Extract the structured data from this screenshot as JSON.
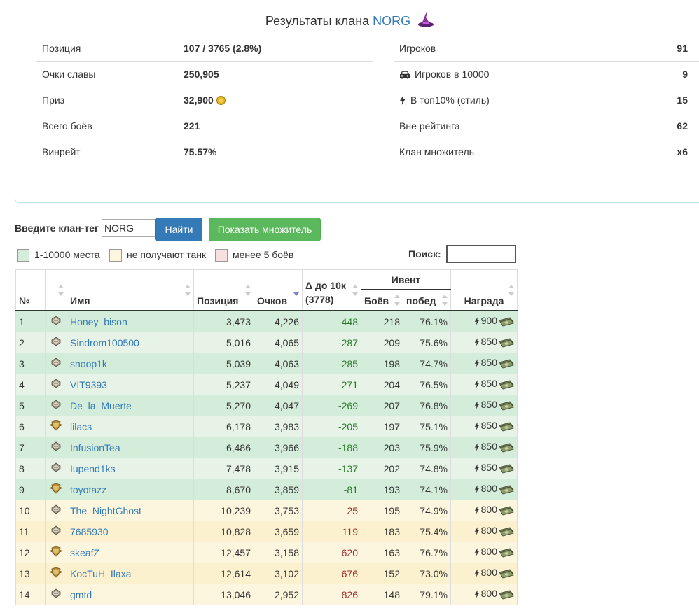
{
  "summary": {
    "title_prefix": "Результаты клана",
    "clan_tag": "NORG",
    "left": [
      {
        "label": "Позиция",
        "value": "107 / 3765 (2.8%)"
      },
      {
        "label": "Очки славы",
        "value": "250,905"
      },
      {
        "label": "Приз",
        "value": "32,900"
      },
      {
        "label": "Всего боёв",
        "value": "221"
      },
      {
        "label": "Винрейт",
        "value": "75.57%"
      }
    ],
    "right": [
      {
        "label": "Игроков",
        "value": "91",
        "icon": ""
      },
      {
        "label": "Игроков в 10000",
        "value": "9",
        "icon": "car-icon"
      },
      {
        "label": "В топ10% (стиль)",
        "value": "15",
        "icon": "bolt-icon"
      },
      {
        "label": "Вне рейтинга",
        "value": "62",
        "icon": ""
      },
      {
        "label": "Клан множитель",
        "value": "x6",
        "icon": ""
      }
    ]
  },
  "search": {
    "tag_label": "Введите клан-тег",
    "tag_value": "NORG",
    "find_label": "Найти",
    "multiplier_label": "Показать множитель",
    "filter_label": "Поиск:"
  },
  "legend": [
    {
      "label": "1-10000 места",
      "color": "#d4edda"
    },
    {
      "label": "не получают танк",
      "color": "#fdf6de"
    },
    {
      "label": "менее 5 боёв",
      "color": "#f8dfe2"
    }
  ],
  "table": {
    "headers": {
      "num": "№",
      "name": "Имя",
      "position": "Позиция",
      "points": "Очков",
      "delta_line1": "Δ до 10к",
      "delta_line2": "(3778)",
      "event": "Ивент",
      "battles": "Боёв",
      "wins": "побед",
      "reward": "Награда"
    },
    "rows": [
      {
        "n": "1",
        "rank": "silver",
        "name": "Honey_bison",
        "position": "3,473",
        "points": "4,226",
        "delta": "-448",
        "battles": "218",
        "wins": "76.1%",
        "reward": "900",
        "style": "g"
      },
      {
        "n": "2",
        "rank": "silver",
        "name": "Sindrom100500",
        "position": "5,016",
        "points": "4,065",
        "delta": "-287",
        "battles": "209",
        "wins": "75.6%",
        "reward": "850",
        "style": "g2"
      },
      {
        "n": "3",
        "rank": "silver",
        "name": "snoop1k_",
        "position": "5,039",
        "points": "4,063",
        "delta": "-285",
        "battles": "198",
        "wins": "74.7%",
        "reward": "850",
        "style": "g"
      },
      {
        "n": "4",
        "rank": "silver",
        "name": "VIT9393",
        "position": "5,237",
        "points": "4,049",
        "delta": "-271",
        "battles": "204",
        "wins": "76.5%",
        "reward": "850",
        "style": "g2"
      },
      {
        "n": "5",
        "rank": "silver",
        "name": "De_la_Muerte_",
        "position": "5,270",
        "points": "4,047",
        "delta": "-269",
        "battles": "207",
        "wins": "76.8%",
        "reward": "850",
        "style": "g"
      },
      {
        "n": "6",
        "rank": "gold",
        "name": "lilacs",
        "position": "6,178",
        "points": "3,983",
        "delta": "-205",
        "battles": "197",
        "wins": "75.1%",
        "reward": "850",
        "style": "g2"
      },
      {
        "n": "7",
        "rank": "silver",
        "name": "InfusionTea",
        "position": "6,486",
        "points": "3,966",
        "delta": "-188",
        "battles": "203",
        "wins": "75.9%",
        "reward": "850",
        "style": "g"
      },
      {
        "n": "8",
        "rank": "silver",
        "name": "Iupend1ks",
        "position": "7,478",
        "points": "3,915",
        "delta": "-137",
        "battles": "202",
        "wins": "74.8%",
        "reward": "850",
        "style": "g2"
      },
      {
        "n": "9",
        "rank": "gold",
        "name": "toyotazz",
        "position": "8,670",
        "points": "3,859",
        "delta": "-81",
        "battles": "193",
        "wins": "74.1%",
        "reward": "800",
        "style": "g"
      },
      {
        "n": "10",
        "rank": "silver",
        "name": "The_NightGhost",
        "position": "10,239",
        "points": "3,753",
        "delta": "25",
        "battles": "195",
        "wins": "74.9%",
        "reward": "800",
        "style": "y"
      },
      {
        "n": "11",
        "rank": "silver",
        "name": "7685930",
        "position": "10,828",
        "points": "3,659",
        "delta": "119",
        "battles": "183",
        "wins": "75.4%",
        "reward": "800",
        "style": "y2"
      },
      {
        "n": "12",
        "rank": "gold",
        "name": "skeafZ",
        "position": "12,457",
        "points": "3,158",
        "delta": "620",
        "battles": "163",
        "wins": "76.7%",
        "reward": "800",
        "style": "y"
      },
      {
        "n": "13",
        "rank": "gold",
        "name": "KocTuH_Ilaxa",
        "position": "12,614",
        "points": "3,102",
        "delta": "676",
        "battles": "152",
        "wins": "73.0%",
        "reward": "800",
        "style": "y2"
      },
      {
        "n": "14",
        "rank": "silver",
        "name": "gmtd",
        "position": "13,046",
        "points": "2,952",
        "delta": "826",
        "battles": "148",
        "wins": "79.1%",
        "reward": "800",
        "style": "y"
      }
    ]
  }
}
